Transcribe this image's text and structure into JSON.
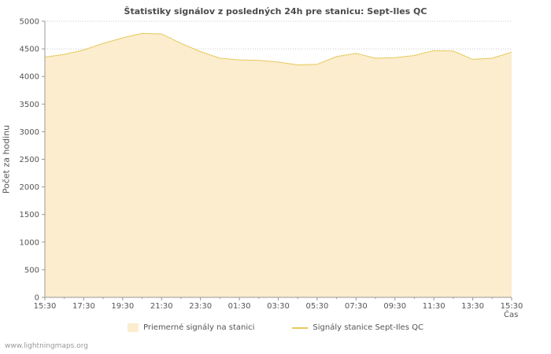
{
  "title": "Štatistiky signálov z posledných 24h pre stanicu: Sept-Iles QC",
  "watermark": "www.lightningmaps.org",
  "colors": {
    "area_fill": "#FBEDCD",
    "line": "#E6C95C",
    "grid": "#c8c8c8",
    "axis": "#999999",
    "tick_text": "#555555",
    "title_text": "#4a4a4a"
  },
  "legend": [
    {
      "label": "Priemerné signály na stanici",
      "type": "area"
    },
    {
      "label": "Signály stanice Sept-Iles QC",
      "type": "line"
    }
  ],
  "chart_data": {
    "type": "area",
    "title": "Štatistiky signálov z posledných 24h pre stanicu: Sept-Iles QC",
    "xlabel": "Čas",
    "ylabel": "Počet za hodinu",
    "ylim": [
      0,
      5000
    ],
    "y_ticks": [
      0,
      500,
      1000,
      1500,
      2000,
      2500,
      3000,
      3500,
      4000,
      4500,
      5000
    ],
    "x_tick_labels": [
      "15:30",
      "17:30",
      "19:30",
      "21:30",
      "23:30",
      "01:30",
      "03:30",
      "05:30",
      "07:30",
      "09:30",
      "11:30",
      "13:30",
      "15:30"
    ],
    "x_hours_span": 24,
    "grid": true,
    "legend_position": "bottom",
    "series": [
      {
        "name": "Priemerné signály na stanici",
        "values": [
          4350,
          4400,
          4480,
          4600,
          4700,
          4780,
          4770,
          4600,
          4450,
          4330,
          4300,
          4290,
          4260,
          4210,
          4220,
          4360,
          4420,
          4330,
          4340,
          4380,
          4470,
          4460,
          4310,
          4330,
          4440
        ]
      }
    ]
  }
}
